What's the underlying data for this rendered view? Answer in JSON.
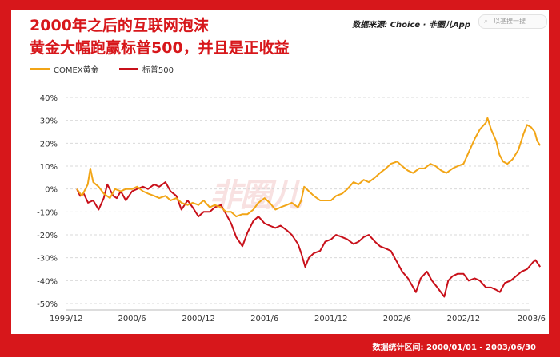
{
  "header": {
    "title_line1": "2000年之后的互联网泡沫",
    "title_line2": "黄金大幅跑赢标普500，并且是正收益",
    "source": "数据来源: Choice · 非圈儿App",
    "search_placeholder": "以基搜一搜"
  },
  "watermark": "非圈儿",
  "footer": {
    "stat_period": "数据统计区间: 2000/01/01 - 2003/06/30"
  },
  "colors": {
    "brand_red": "#d7171b",
    "gold": "#f2a516",
    "sp500": "#c8101a"
  },
  "chart_data": {
    "type": "line",
    "x_tick_labels": [
      "1999/12",
      "2000/6",
      "2000/12",
      "2001/6",
      "2001/12",
      "2002/6",
      "2002/12",
      "2003/6"
    ],
    "x_range": [
      "1999-12",
      "2003-06"
    ],
    "y_ticks": [
      40,
      30,
      20,
      10,
      0,
      -10,
      -20,
      -30,
      -40,
      -50
    ],
    "y_tick_labels": [
      "40%",
      "30%",
      "20%",
      "10%",
      "0%",
      "-10%",
      "-20%",
      "-30%",
      "-40%",
      "-50%"
    ],
    "ylim": [
      -50,
      40
    ],
    "grid": "horizontal-dashed",
    "legend_position": "top-left",
    "series": [
      {
        "name": "COMEX黄金",
        "color": "#f2a516",
        "points": [
          [
            "2000-01-01",
            0
          ],
          [
            "2000-01-15",
            -3
          ],
          [
            "2000-01-31",
            2
          ],
          [
            "2000-02-07",
            9
          ],
          [
            "2000-02-15",
            3
          ],
          [
            "2000-03-01",
            1
          ],
          [
            "2000-03-15",
            -2
          ],
          [
            "2000-04-01",
            -4
          ],
          [
            "2000-04-15",
            0
          ],
          [
            "2000-05-01",
            -1
          ],
          [
            "2000-05-15",
            0
          ],
          [
            "2000-06-01",
            0
          ],
          [
            "2000-06-15",
            1
          ],
          [
            "2000-07-01",
            -1
          ],
          [
            "2000-07-15",
            -2
          ],
          [
            "2000-08-01",
            -3
          ],
          [
            "2000-08-15",
            -4
          ],
          [
            "2000-09-01",
            -3
          ],
          [
            "2000-09-15",
            -5
          ],
          [
            "2000-10-01",
            -4
          ],
          [
            "2000-10-15",
            -6
          ],
          [
            "2000-11-01",
            -7
          ],
          [
            "2000-11-15",
            -6
          ],
          [
            "2000-12-01",
            -7
          ],
          [
            "2000-12-15",
            -5
          ],
          [
            "2001-01-01",
            -8
          ],
          [
            "2001-01-15",
            -7
          ],
          [
            "2001-02-01",
            -8
          ],
          [
            "2001-02-15",
            -10
          ],
          [
            "2001-03-01",
            -10
          ],
          [
            "2001-03-15",
            -12
          ],
          [
            "2001-04-01",
            -11
          ],
          [
            "2001-04-15",
            -11
          ],
          [
            "2001-05-01",
            -9
          ],
          [
            "2001-05-15",
            -6
          ],
          [
            "2001-06-01",
            -4
          ],
          [
            "2001-06-15",
            -6
          ],
          [
            "2001-07-01",
            -9
          ],
          [
            "2001-07-15",
            -8
          ],
          [
            "2001-08-01",
            -7
          ],
          [
            "2001-08-15",
            -6
          ],
          [
            "2001-09-01",
            -8
          ],
          [
            "2001-09-10",
            -5
          ],
          [
            "2001-09-18",
            1
          ],
          [
            "2001-10-01",
            -1
          ],
          [
            "2001-10-15",
            -3
          ],
          [
            "2001-11-01",
            -5
          ],
          [
            "2001-11-15",
            -5
          ],
          [
            "2001-12-01",
            -5
          ],
          [
            "2001-12-15",
            -3
          ],
          [
            "2002-01-01",
            -2
          ],
          [
            "2002-01-15",
            0
          ],
          [
            "2002-02-01",
            3
          ],
          [
            "2002-02-15",
            2
          ],
          [
            "2002-03-01",
            4
          ],
          [
            "2002-03-15",
            3
          ],
          [
            "2002-04-01",
            5
          ],
          [
            "2002-04-15",
            7
          ],
          [
            "2002-05-01",
            9
          ],
          [
            "2002-05-15",
            11
          ],
          [
            "2002-06-01",
            12
          ],
          [
            "2002-06-15",
            10
          ],
          [
            "2002-07-01",
            8
          ],
          [
            "2002-07-15",
            7
          ],
          [
            "2002-08-01",
            9
          ],
          [
            "2002-08-15",
            9
          ],
          [
            "2002-09-01",
            11
          ],
          [
            "2002-09-15",
            10
          ],
          [
            "2002-10-01",
            8
          ],
          [
            "2002-10-15",
            7
          ],
          [
            "2002-11-01",
            9
          ],
          [
            "2002-11-15",
            10
          ],
          [
            "2002-12-01",
            11
          ],
          [
            "2002-12-15",
            16
          ],
          [
            "2003-01-01",
            22
          ],
          [
            "2003-01-15",
            26
          ],
          [
            "2003-02-01",
            29
          ],
          [
            "2003-02-05",
            31
          ],
          [
            "2003-02-15",
            26
          ],
          [
            "2003-03-01",
            21
          ],
          [
            "2003-03-10",
            15
          ],
          [
            "2003-03-20",
            12
          ],
          [
            "2003-04-01",
            11
          ],
          [
            "2003-04-15",
            13
          ],
          [
            "2003-05-01",
            17
          ],
          [
            "2003-05-15",
            24
          ],
          [
            "2003-05-25",
            28
          ],
          [
            "2003-06-05",
            27
          ],
          [
            "2003-06-15",
            25
          ],
          [
            "2003-06-22",
            21
          ],
          [
            "2003-06-30",
            19
          ]
        ]
      },
      {
        "name": "标普500",
        "color": "#c8101a",
        "points": [
          [
            "2000-01-01",
            0
          ],
          [
            "2000-01-10",
            -3
          ],
          [
            "2000-01-20",
            -2
          ],
          [
            "2000-02-01",
            -6
          ],
          [
            "2000-02-15",
            -5
          ],
          [
            "2000-03-01",
            -9
          ],
          [
            "2000-03-15",
            -4
          ],
          [
            "2000-03-25",
            2
          ],
          [
            "2000-04-10",
            -3
          ],
          [
            "2000-04-20",
            -4
          ],
          [
            "2000-05-01",
            -1
          ],
          [
            "2000-05-15",
            -5
          ],
          [
            "2000-06-01",
            -1
          ],
          [
            "2000-06-15",
            0
          ],
          [
            "2000-07-01",
            1
          ],
          [
            "2000-07-15",
            0
          ],
          [
            "2000-08-01",
            2
          ],
          [
            "2000-08-15",
            1
          ],
          [
            "2000-09-01",
            3
          ],
          [
            "2000-09-15",
            -1
          ],
          [
            "2000-10-01",
            -3
          ],
          [
            "2000-10-15",
            -9
          ],
          [
            "2000-11-01",
            -5
          ],
          [
            "2000-11-15",
            -8
          ],
          [
            "2000-12-01",
            -12
          ],
          [
            "2000-12-15",
            -10
          ],
          [
            "2001-01-01",
            -10
          ],
          [
            "2001-01-15",
            -8
          ],
          [
            "2001-02-01",
            -7
          ],
          [
            "2001-02-15",
            -11
          ],
          [
            "2001-03-01",
            -15
          ],
          [
            "2001-03-15",
            -21
          ],
          [
            "2001-04-01",
            -25
          ],
          [
            "2001-04-15",
            -19
          ],
          [
            "2001-05-01",
            -14
          ],
          [
            "2001-05-15",
            -12
          ],
          [
            "2001-06-01",
            -15
          ],
          [
            "2001-06-15",
            -16
          ],
          [
            "2001-07-01",
            -17
          ],
          [
            "2001-07-15",
            -16
          ],
          [
            "2001-08-01",
            -18
          ],
          [
            "2001-08-15",
            -20
          ],
          [
            "2001-09-01",
            -24
          ],
          [
            "2001-09-10",
            -28
          ],
          [
            "2001-09-21",
            -34
          ],
          [
            "2001-10-01",
            -30
          ],
          [
            "2001-10-15",
            -28
          ],
          [
            "2001-11-01",
            -27
          ],
          [
            "2001-11-15",
            -23
          ],
          [
            "2001-12-01",
            -22
          ],
          [
            "2001-12-15",
            -20
          ],
          [
            "2002-01-01",
            -21
          ],
          [
            "2002-01-15",
            -22
          ],
          [
            "2002-02-01",
            -24
          ],
          [
            "2002-02-15",
            -23
          ],
          [
            "2002-03-01",
            -21
          ],
          [
            "2002-03-15",
            -20
          ],
          [
            "2002-04-01",
            -23
          ],
          [
            "2002-04-15",
            -25
          ],
          [
            "2002-05-01",
            -26
          ],
          [
            "2002-05-15",
            -27
          ],
          [
            "2002-06-01",
            -32
          ],
          [
            "2002-06-15",
            -36
          ],
          [
            "2002-07-01",
            -39
          ],
          [
            "2002-07-23",
            -45
          ],
          [
            "2002-08-05",
            -39
          ],
          [
            "2002-08-22",
            -36
          ],
          [
            "2002-09-05",
            -40
          ],
          [
            "2002-09-20",
            -43
          ],
          [
            "2002-10-09",
            -47
          ],
          [
            "2002-10-20",
            -40
          ],
          [
            "2002-11-01",
            -38
          ],
          [
            "2002-11-15",
            -37
          ],
          [
            "2002-12-01",
            -37
          ],
          [
            "2002-12-15",
            -40
          ],
          [
            "2003-01-01",
            -39
          ],
          [
            "2003-01-15",
            -40
          ],
          [
            "2003-02-01",
            -43
          ],
          [
            "2003-02-15",
            -43
          ],
          [
            "2003-03-01",
            -44
          ],
          [
            "2003-03-11",
            -45
          ],
          [
            "2003-03-25",
            -41
          ],
          [
            "2003-04-10",
            -40
          ],
          [
            "2003-04-25",
            -38
          ],
          [
            "2003-05-10",
            -36
          ],
          [
            "2003-05-25",
            -35
          ],
          [
            "2003-06-10",
            -32
          ],
          [
            "2003-06-17",
            -31
          ],
          [
            "2003-06-30",
            -34
          ]
        ]
      }
    ]
  }
}
